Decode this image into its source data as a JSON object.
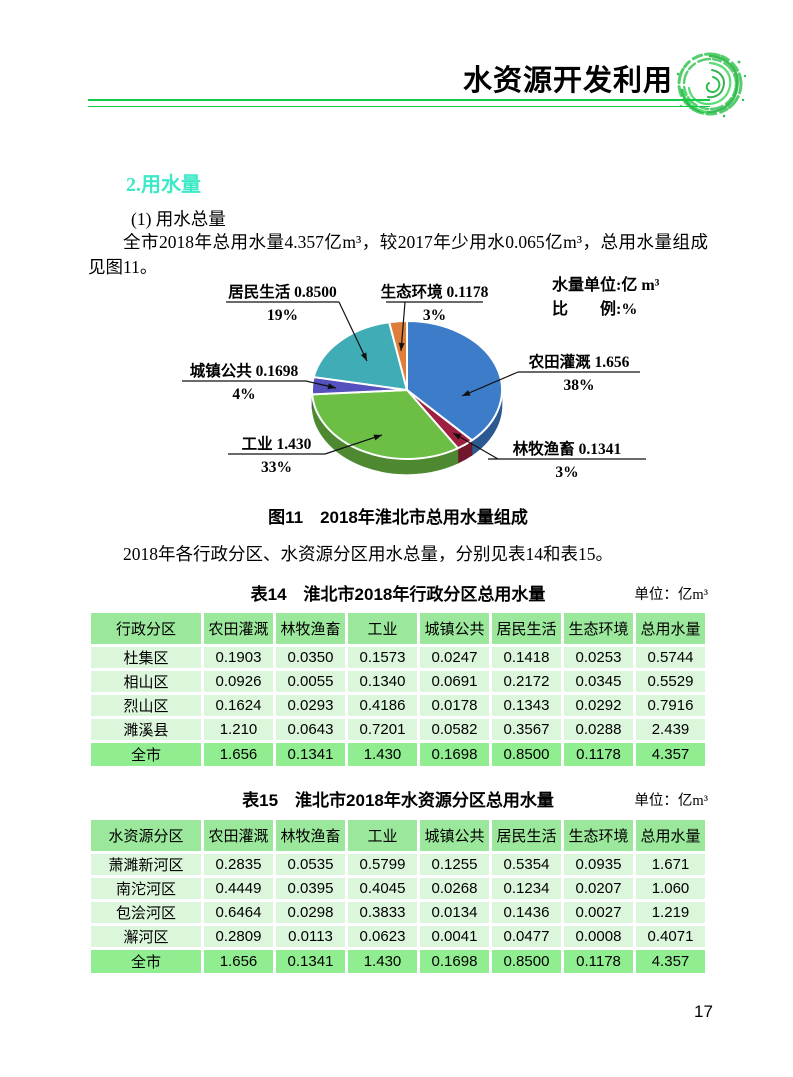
{
  "header": {
    "title": "水资源开发利用",
    "logo": "green-water-swirl"
  },
  "section": {
    "heading": "2.用水量",
    "subheading": "(1) 用水总量",
    "paragraph1": "全市2018年总用水量4.357亿m³，较2017年少用水0.065亿m³，总用水量组成见图11。",
    "paragraph2": "2018年各行政分区、水资源分区用水总量，分别见表14和表15。"
  },
  "chart_data": {
    "type": "pie",
    "style": "3d",
    "title": "图11　2018年淮北市总用水量组成",
    "unit_note": "水量单位:亿 m³",
    "ratio_note": "比　　例:%",
    "total": 4.357,
    "slices": [
      {
        "label": "农田灌溉",
        "value": 1.656,
        "value_str": "1.656",
        "pct": 38,
        "color": "#3D7CC9"
      },
      {
        "label": "林牧渔畜",
        "value": 0.1341,
        "value_str": "0.1341",
        "pct": 3,
        "color": "#9E1F3F"
      },
      {
        "label": "工业",
        "value": 1.43,
        "value_str": "1.430",
        "pct": 33,
        "color": "#6CBE45"
      },
      {
        "label": "城镇公共",
        "value": 0.1698,
        "value_str": "0.1698",
        "pct": 4,
        "color": "#5450BE"
      },
      {
        "label": "居民生活",
        "value": 0.85,
        "value_str": "0.8500",
        "pct": 19,
        "color": "#40ACB6"
      },
      {
        "label": "生态环境",
        "value": 0.1178,
        "value_str": "0.1178",
        "pct": 3,
        "color": "#DD7E3A"
      }
    ]
  },
  "tables": [
    {
      "title": "表14　淮北市2018年行政分区总用水量",
      "unit": "单位：亿m³",
      "headers": [
        "行政分区",
        "农田灌溉",
        "林牧渔畜",
        "工业",
        "城镇公共",
        "居民生活",
        "生态环境",
        "总用水量"
      ],
      "rows": [
        [
          "杜集区",
          "0.1903",
          "0.0350",
          "0.1573",
          "0.0247",
          "0.1418",
          "0.0253",
          "0.5744"
        ],
        [
          "相山区",
          "0.0926",
          "0.0055",
          "0.1340",
          "0.0691",
          "0.2172",
          "0.0345",
          "0.5529"
        ],
        [
          "烈山区",
          "0.1624",
          "0.0293",
          "0.4186",
          "0.0178",
          "0.1343",
          "0.0292",
          "0.7916"
        ],
        [
          "濉溪县",
          "1.210",
          "0.0643",
          "0.7201",
          "0.0582",
          "0.3567",
          "0.0288",
          "2.439"
        ]
      ],
      "total_row": [
        "全市",
        "1.656",
        "0.1341",
        "1.430",
        "0.1698",
        "0.8500",
        "0.1178",
        "4.357"
      ]
    },
    {
      "title": "表15　淮北市2018年水资源分区总用水量",
      "unit": "单位：亿m³",
      "headers": [
        "水资源分区",
        "农田灌溉",
        "林牧渔畜",
        "工业",
        "城镇公共",
        "居民生活",
        "生态环境",
        "总用水量"
      ],
      "rows": [
        [
          "萧濉新河区",
          "0.2835",
          "0.0535",
          "0.5799",
          "0.1255",
          "0.5354",
          "0.0935",
          "1.671"
        ],
        [
          "南沱河区",
          "0.4449",
          "0.0395",
          "0.4045",
          "0.0268",
          "0.1234",
          "0.0207",
          "1.060"
        ],
        [
          "包浍河区",
          "0.6464",
          "0.0298",
          "0.3833",
          "0.0134",
          "0.1436",
          "0.0027",
          "1.219"
        ],
        [
          "澥河区",
          "0.2809",
          "0.0113",
          "0.0623",
          "0.0041",
          "0.0477",
          "0.0008",
          "0.4071"
        ]
      ],
      "total_row": [
        "全市",
        "1.656",
        "0.1341",
        "1.430",
        "0.1698",
        "0.8500",
        "0.1178",
        "4.357"
      ]
    }
  ],
  "page_number": "17"
}
